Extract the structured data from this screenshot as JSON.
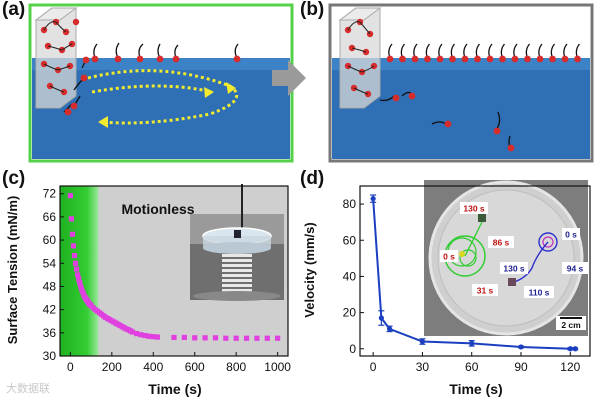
{
  "panels": {
    "a": {
      "label": "(a)"
    },
    "b": {
      "label": "(b)"
    },
    "c": {
      "label": "(c)"
    },
    "d": {
      "label": "(d)"
    }
  },
  "arrow_color": "#9a9a9a",
  "watermark": "大数据联",
  "chart_data": [
    {
      "type": "scatter",
      "panel": "c",
      "xlabel": "Time (s)",
      "ylabel": "Surface Tension (mN/m)",
      "xlim": [
        -50,
        1050
      ],
      "ylim": [
        30,
        74
      ],
      "xticks": [
        0,
        200,
        400,
        600,
        800,
        1000
      ],
      "yticks": [
        30,
        36,
        42,
        48,
        54,
        60,
        66,
        72
      ],
      "annotation": "Motionless",
      "highlight_span": [
        -50,
        135
      ],
      "highlight_color": "#33cc33",
      "motionless_shade_color": "#cfcfcf",
      "marker_color": "#e040e0",
      "series": [
        {
          "x": [
            0,
            5,
            10,
            15,
            20,
            25,
            30,
            35,
            40,
            45,
            50,
            55,
            60,
            65,
            70,
            75,
            80,
            85,
            90,
            95,
            100,
            110,
            120,
            130,
            140,
            150,
            160,
            170,
            180,
            190,
            200,
            210,
            220,
            230,
            240,
            250,
            260,
            270,
            280,
            290,
            300,
            320,
            340,
            360,
            380,
            400,
            420,
            500,
            550,
            600,
            650,
            700,
            750,
            800,
            850,
            900,
            950,
            1000
          ],
          "y": [
            71.5,
            65.5,
            61.5,
            58.5,
            56,
            54,
            52.5,
            51,
            50,
            49,
            48,
            47.2,
            46.5,
            45.8,
            45.2,
            44.8,
            44.4,
            44,
            43.6,
            43.3,
            43,
            42.5,
            42,
            41.6,
            41.2,
            40.8,
            40.4,
            40,
            39.7,
            39.4,
            39.1,
            38.8,
            38.5,
            38.2,
            37.9,
            37.6,
            37.3,
            37,
            36.8,
            36.5,
            36.2,
            35.8,
            35.5,
            35.3,
            35.1,
            35,
            34.9,
            34.8,
            34.8,
            34.7,
            34.7,
            34.7,
            34.6,
            34.6,
            34.6,
            34.6,
            34.6,
            34.6
          ]
        }
      ]
    },
    {
      "type": "line",
      "panel": "d",
      "xlabel": "Time (s)",
      "ylabel": "Velocity (mm/s)",
      "xlim": [
        -8,
        132
      ],
      "ylim": [
        -4,
        90
      ],
      "xticks": [
        0,
        30,
        60,
        90,
        120
      ],
      "yticks": [
        0,
        20,
        40,
        60,
        80
      ],
      "line_color": "#1a3fbf",
      "series": [
        {
          "x": [
            0,
            5,
            10,
            30,
            60,
            90,
            120,
            123
          ],
          "y": [
            83,
            17,
            11,
            4,
            3,
            1,
            0,
            0
          ],
          "err": [
            2,
            4,
            1.5,
            1.5,
            1.5,
            0.5,
            0.5,
            0.5
          ]
        }
      ],
      "inset_labels": {
        "t130_left": "130 s",
        "t0_left": "0 s",
        "t86": "86 s",
        "t31": "31 s",
        "t0_right": "0 s",
        "t130_right": "130 s",
        "t94": "94 s",
        "t110": "110 s",
        "scale": "2 cm"
      }
    }
  ]
}
